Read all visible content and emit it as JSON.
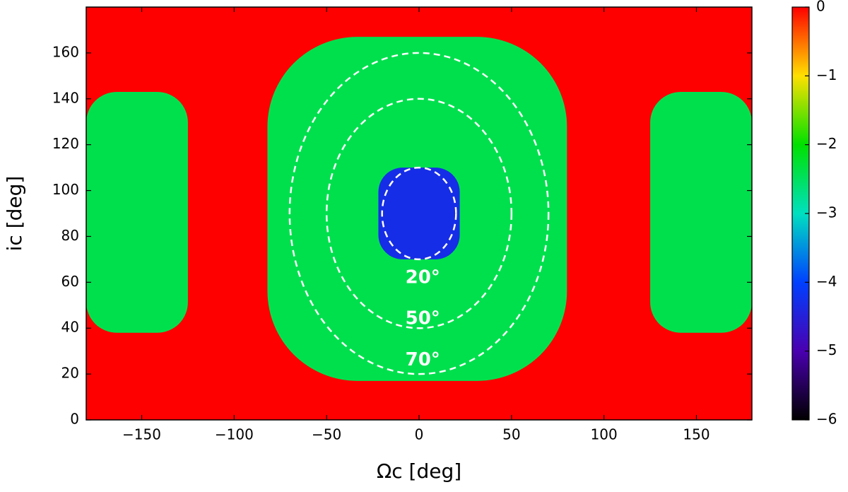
{
  "chart_data": {
    "type": "heatmap",
    "xlabel": "Ωc [deg]",
    "ylabel": "ic [deg]",
    "xlim": [
      -180,
      180
    ],
    "ylim": [
      0,
      180
    ],
    "xticks": [
      {
        "value": -150,
        "label": "−150"
      },
      {
        "value": -100,
        "label": "−100"
      },
      {
        "value": -50,
        "label": "−50"
      },
      0,
      50,
      100,
      150
    ],
    "yticks": [
      0,
      20,
      40,
      60,
      80,
      100,
      120,
      140,
      160
    ],
    "background": 0,
    "regions": [
      {
        "x": [
          -82,
          80
        ],
        "y": [
          17,
          167
        ],
        "value": -2.4
      },
      {
        "x": [
          -180,
          -125
        ],
        "y": [
          38,
          143
        ],
        "value": -2.4
      },
      {
        "x": [
          125,
          180
        ],
        "y": [
          38,
          143
        ],
        "value": -2.4
      },
      {
        "x": [
          -22,
          22
        ],
        "y": [
          70,
          110
        ],
        "value": -4.3
      }
    ],
    "contours": [
      {
        "level": 20,
        "label": "20°",
        "x": [
          -20,
          20
        ],
        "y": [
          70,
          110
        ],
        "label_at": [
          2,
          62
        ]
      },
      {
        "level": 50,
        "label": "50°",
        "x": [
          -50,
          50
        ],
        "y": [
          40,
          140
        ],
        "label_at": [
          2,
          44
        ]
      },
      {
        "level": 70,
        "label": "70°",
        "x": [
          -70,
          70
        ],
        "y": [
          20,
          160
        ],
        "label_at": [
          2,
          26
        ]
      }
    ],
    "clim": [
      -6,
      0
    ],
    "cticks": [
      {
        "value": -6,
        "label": "−6"
      },
      {
        "value": -5,
        "label": "−5"
      },
      {
        "value": -4,
        "label": "−4"
      },
      {
        "value": -3,
        "label": "−3"
      },
      {
        "value": -2,
        "label": "−2"
      },
      {
        "value": -1,
        "label": "−1"
      },
      0
    ],
    "colormap": [
      "#000000",
      "#4a00b0",
      "#0040ff",
      "#00e0c0",
      "#00e000",
      "#ffe000",
      "#ff0000"
    ]
  }
}
